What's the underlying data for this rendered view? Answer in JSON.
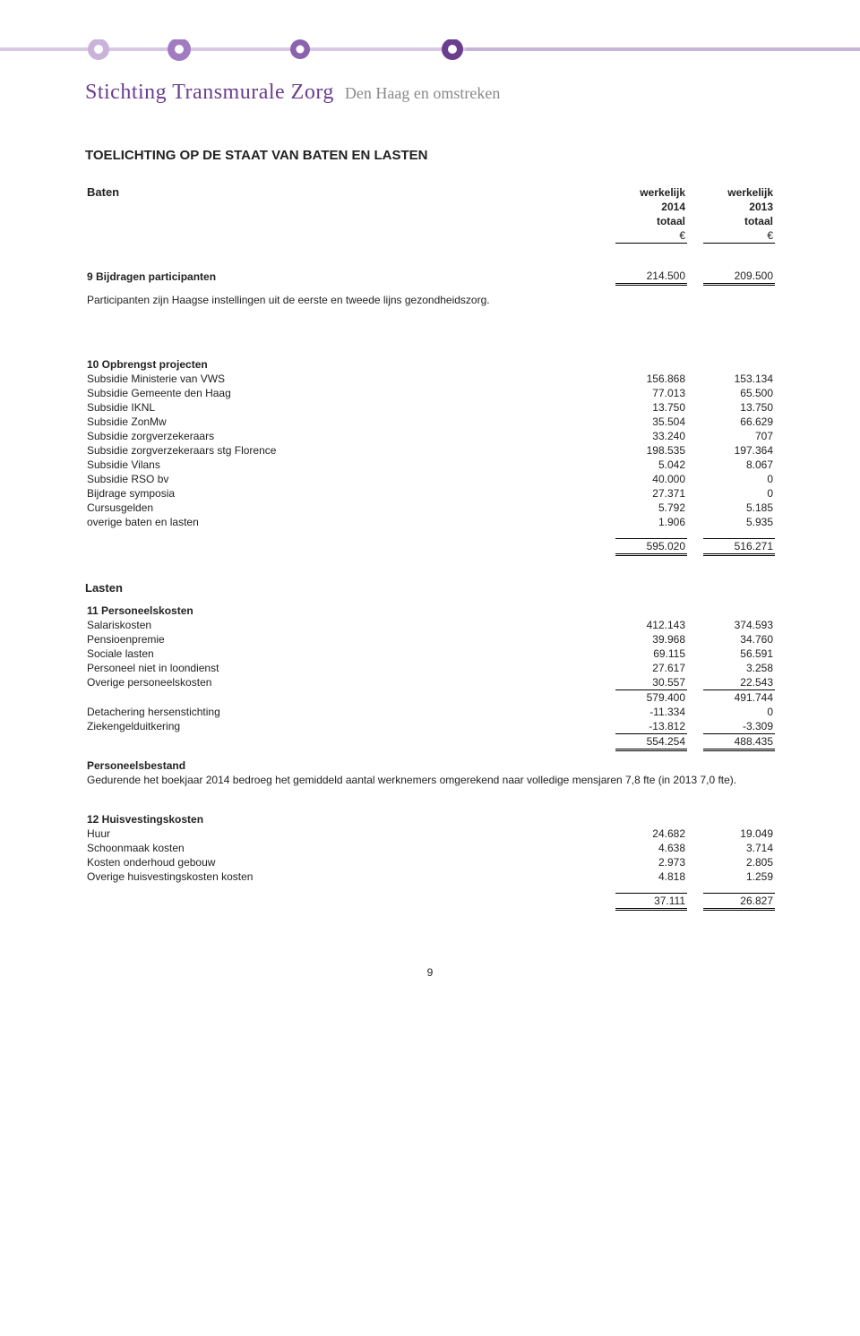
{
  "header": {
    "logo_main": "Stichting Transmurale Zorg",
    "logo_sub": "Den Haag en omstreken",
    "band_colors": {
      "light": "#c9b3d9",
      "mid": "#a17cc0",
      "dark": "#6a3d8f"
    }
  },
  "title": "TOELICHTING  OP DE STAAT VAN BATEN EN LASTEN",
  "col_headers": {
    "c1a": "werkelijk",
    "c1b": "2014",
    "c1c": "totaal",
    "c2a": "werkelijk",
    "c2b": "2013",
    "c2c": "totaal",
    "eur": "€"
  },
  "baten": {
    "heading": "Baten",
    "row9": {
      "label": "9 Bijdragen participanten",
      "v1": "214.500",
      "v2": "209.500"
    },
    "note": "Participanten zijn Haagse instellingen uit de eerste en tweede lijns gezondheidszorg.",
    "row10_label": "10 Opbrengst projecten",
    "rows": [
      {
        "label": "Subsidie Ministerie van VWS",
        "v1": "156.868",
        "v2": "153.134"
      },
      {
        "label": "Subsidie Gemeente den Haag",
        "v1": "77.013",
        "v2": "65.500"
      },
      {
        "label": "Subsidie IKNL",
        "v1": "13.750",
        "v2": "13.750"
      },
      {
        "label": "Subsidie ZonMw",
        "v1": "35.504",
        "v2": "66.629"
      },
      {
        "label": "Subsidie zorgverzekeraars",
        "v1": "33.240",
        "v2": "707"
      },
      {
        "label": "Subsidie zorgverzekeraars stg Florence",
        "v1": "198.535",
        "v2": "197.364"
      },
      {
        "label": "Subsidie Vilans",
        "v1": "5.042",
        "v2": "8.067"
      },
      {
        "label": "Subsidie RSO bv",
        "v1": "40.000",
        "v2": "0"
      },
      {
        "label": "Bijdrage symposia",
        "v1": "27.371",
        "v2": "0"
      },
      {
        "label": "Cursusgelden",
        "v1": "5.792",
        "v2": "5.185"
      },
      {
        "label": "overige baten en lasten",
        "v1": "1.906",
        "v2": "5.935"
      }
    ],
    "total": {
      "v1": "595.020",
      "v2": "516.271"
    }
  },
  "lasten": {
    "heading": "Lasten",
    "row11_label": "11 Personeelskosten",
    "rows11": [
      {
        "label": "Salariskosten",
        "v1": "412.143",
        "v2": "374.593"
      },
      {
        "label": "Pensioenpremie",
        "v1": "39.968",
        "v2": "34.760"
      },
      {
        "label": "Sociale lasten",
        "v1": "69.115",
        "v2": "56.591"
      },
      {
        "label": "Personeel niet in loondienst",
        "v1": "27.617",
        "v2": "3.258"
      },
      {
        "label": "Overige personeelskosten",
        "v1": "30.557",
        "v2": "22.543"
      }
    ],
    "subtotal11a": {
      "v1": "579.400",
      "v2": "491.744"
    },
    "rows11b": [
      {
        "label": "Detachering hersenstichting",
        "v1": "-11.334",
        "v2": "0"
      },
      {
        "label": "Ziekengelduitkering",
        "v1": "-13.812",
        "v2": "-3.309"
      }
    ],
    "subtotal11b": {
      "v1": "554.254",
      "v2": "488.435"
    },
    "pb_label": "Personeelsbestand",
    "pb_text": "Gedurende het boekjaar 2014 bedroeg het gemiddeld aantal werknemers  omgerekend naar volledige mensjaren  7,8 fte (in 2013 7,0 fte).",
    "row12_label": "12 Huisvestingskosten",
    "rows12": [
      {
        "label": "Huur",
        "v1": "24.682",
        "v2": "19.049"
      },
      {
        "label": "Schoonmaak kosten",
        "v1": "4.638",
        "v2": "3.714"
      },
      {
        "label": "Kosten onderhoud gebouw",
        "v1": "2.973",
        "v2": "2.805"
      },
      {
        "label": "Overige huisvestingskosten kosten",
        "v1": "4.818",
        "v2": "1.259"
      }
    ],
    "total12": {
      "v1": "37.111",
      "v2": "26.827"
    }
  },
  "page_number": "9"
}
